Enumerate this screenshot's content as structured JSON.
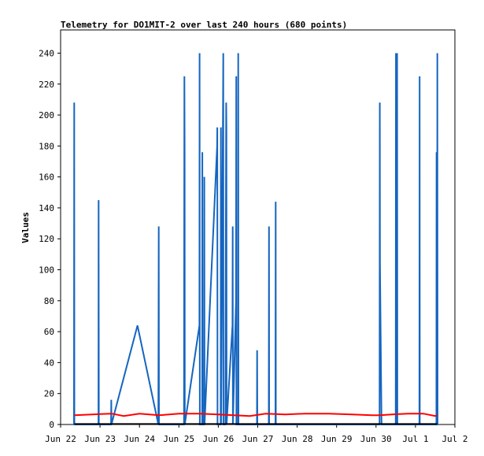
{
  "chart_data": {
    "type": "line",
    "title": "Telemetry for DO1MIT-2 over last 240 hours (680 points)",
    "xlabel": "",
    "ylabel": "Values",
    "ylim": [
      0,
      255
    ],
    "yticks": [
      0,
      20,
      40,
      60,
      80,
      100,
      120,
      140,
      160,
      180,
      200,
      220,
      240
    ],
    "xlim": [
      0,
      10
    ],
    "xticks": [
      {
        "pos": 0,
        "label": "Jun 22"
      },
      {
        "pos": 1,
        "label": "Jun 23"
      },
      {
        "pos": 2,
        "label": "Jun 24"
      },
      {
        "pos": 3,
        "label": "Jun 25"
      },
      {
        "pos": 4,
        "label": "Jun 26"
      },
      {
        "pos": 5,
        "label": "Jun 27"
      },
      {
        "pos": 6,
        "label": "Jun 28"
      },
      {
        "pos": 7,
        "label": "Jun 29"
      },
      {
        "pos": 8,
        "label": "Jun 30"
      },
      {
        "pos": 9,
        "label": "Jul 1"
      },
      {
        "pos": 10,
        "label": "Jul 2"
      }
    ],
    "grid": false,
    "series": [
      {
        "color": "#1565c0",
        "x": [
          0.34,
          0.345,
          0.35,
          0.96,
          0.965,
          0.97,
          1.28,
          1.285,
          1.29,
          1.95,
          2.48,
          2.49,
          2.495,
          2.5,
          3.13,
          3.14,
          3.145,
          3.15,
          3.52,
          3.525,
          3.53,
          3.59,
          3.595,
          3.6,
          3.63,
          3.64,
          3.645,
          3.65,
          3.97,
          3.975,
          3.98,
          4.06,
          4.065,
          4.07,
          4.12,
          4.125,
          4.13,
          4.18,
          4.2,
          4.205,
          4.21,
          4.36,
          4.365,
          4.37,
          4.45,
          4.455,
          4.46,
          4.5,
          4.505,
          4.51,
          4.98,
          4.985,
          4.99,
          5.28,
          5.285,
          5.29,
          5.45,
          5.455,
          5.46,
          8.09,
          8.095,
          8.1,
          8.14,
          8.5,
          8.505,
          8.51,
          8.53,
          8.535,
          8.54,
          9.1,
          9.105,
          9.11,
          9.53,
          9.535,
          9.54,
          9.55,
          9.555,
          9.56
        ],
        "y": [
          0,
          208,
          0,
          0,
          145,
          0,
          0,
          16,
          0,
          64,
          0,
          128,
          0,
          0,
          0,
          225,
          176,
          0,
          64,
          240,
          0,
          0,
          176,
          0,
          0,
          0,
          160,
          0,
          180,
          192,
          0,
          0,
          192,
          0,
          208,
          240,
          0,
          0,
          208,
          192,
          0,
          64,
          128,
          0,
          80,
          225,
          0,
          0,
          240,
          0,
          0,
          48,
          0,
          0,
          128,
          0,
          0,
          144,
          0,
          0,
          208,
          104,
          0,
          0,
          240,
          0,
          0,
          240,
          0,
          0,
          225,
          0,
          0,
          176,
          0,
          0,
          240,
          0
        ]
      },
      {
        "color": "#ff0000",
        "x": [
          0.35,
          0.8,
          1.3,
          1.6,
          2.0,
          2.5,
          3.0,
          3.5,
          4.0,
          4.4,
          4.8,
          5.2,
          5.7,
          6.2,
          6.8,
          7.4,
          7.9,
          8.1,
          8.4,
          8.8,
          9.2,
          9.5,
          9.55
        ],
        "y": [
          6,
          6.5,
          7,
          5.5,
          7,
          6,
          7,
          7,
          6.5,
          6,
          5.5,
          7,
          6.5,
          7,
          7,
          6.5,
          6,
          6,
          6.5,
          7,
          7,
          5.5,
          6
        ]
      },
      {
        "color": "#000000",
        "x": [
          0.35,
          9.55
        ],
        "y": [
          0.3,
          0.3
        ]
      }
    ]
  }
}
